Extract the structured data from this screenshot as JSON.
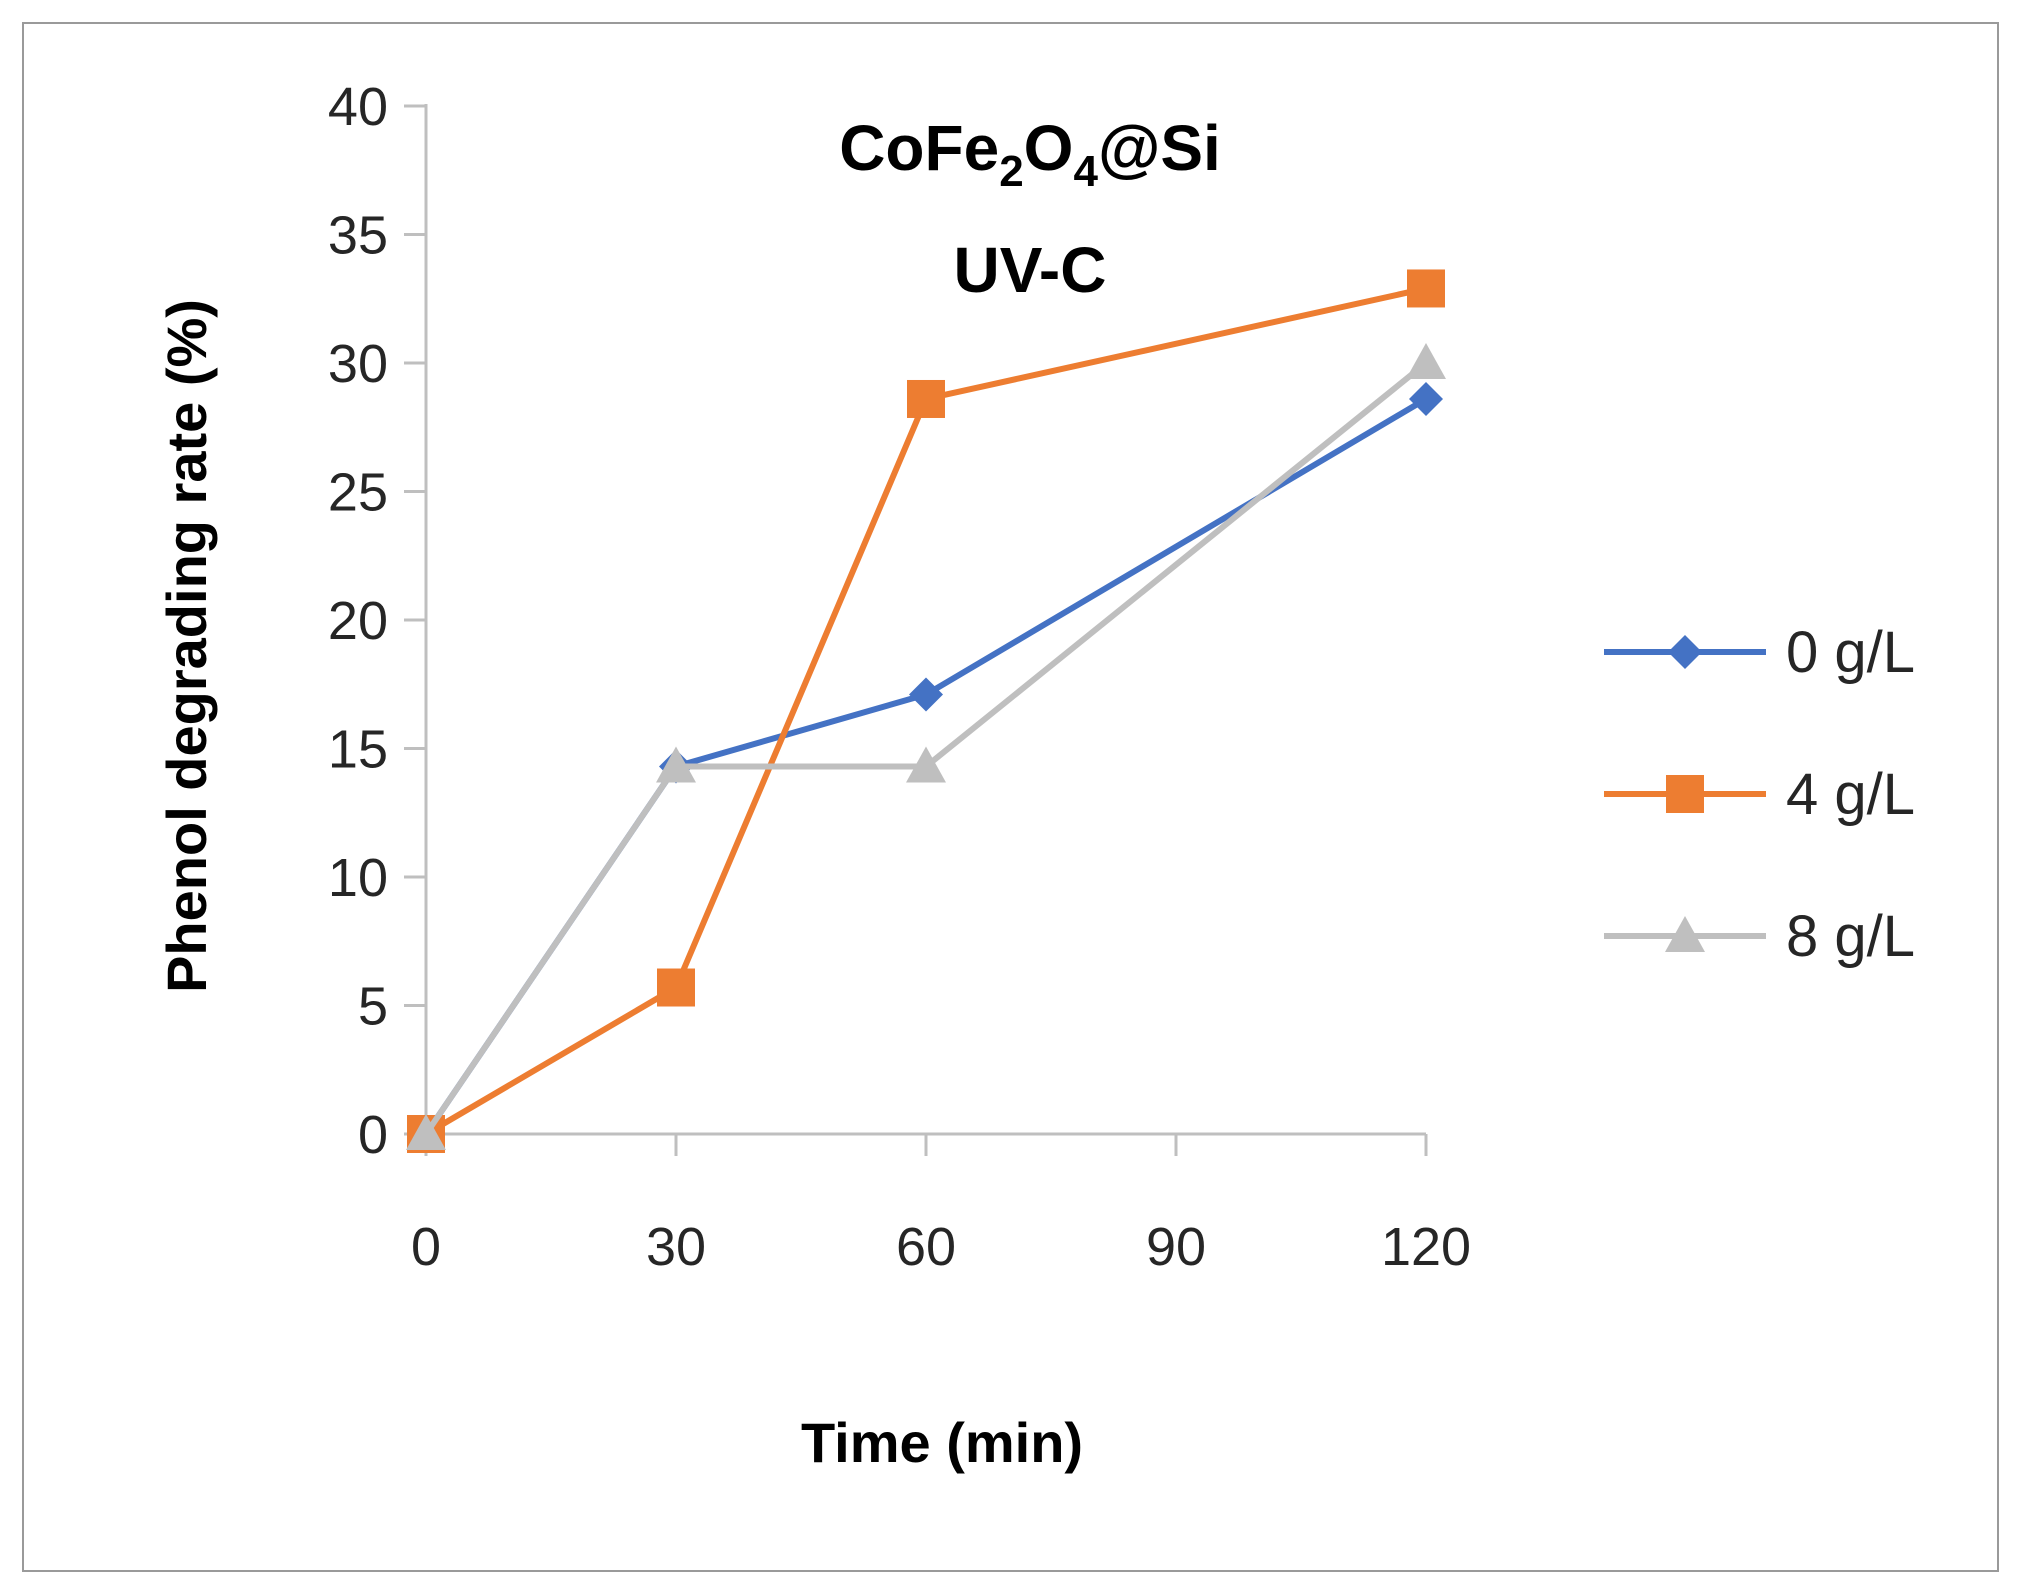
{
  "chart_data": {
    "type": "line",
    "title_line1": "CoFe₂O₄@Si",
    "title_line2": "UV-C",
    "xlabel": "Time (min)",
    "ylabel": "Phenol degrading rate (%)",
    "x": [
      0,
      30,
      60,
      120
    ],
    "x_ticks": [
      0,
      30,
      60,
      90,
      120
    ],
    "x_tick_labels": [
      "0",
      "30",
      "60",
      "90",
      "120"
    ],
    "y_ticks": [
      0,
      5,
      10,
      15,
      20,
      25,
      30,
      35,
      40
    ],
    "y_tick_labels": [
      "0",
      "5",
      "10",
      "15",
      "20",
      "25",
      "30",
      "35",
      "40"
    ],
    "xlim": [
      0,
      120
    ],
    "ylim": [
      0,
      40
    ],
    "grid": false,
    "legend_position": "right",
    "series": [
      {
        "name": "0 g/L",
        "color": "#4472C4",
        "marker": "diamond",
        "values": [
          0,
          14.3,
          17.1,
          28.6
        ]
      },
      {
        "name": "4 g/L",
        "color": "#ED7D31",
        "marker": "square",
        "values": [
          0,
          5.7,
          28.6,
          32.9
        ]
      },
      {
        "name": "8 g/L",
        "color": "#BFBFBF",
        "marker": "triangle",
        "values": [
          0,
          14.3,
          14.3,
          30.0
        ]
      }
    ]
  }
}
